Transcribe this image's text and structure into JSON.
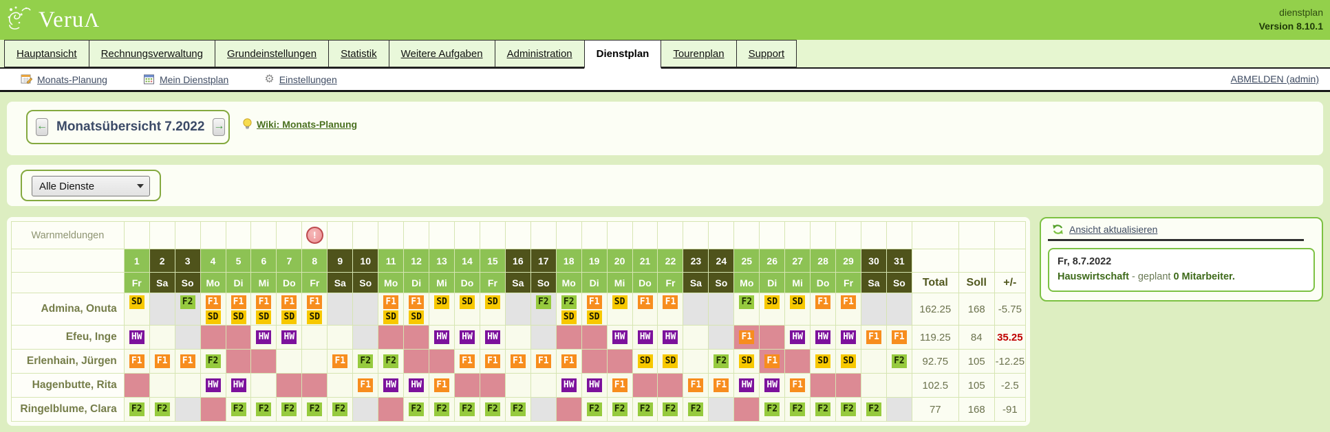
{
  "header": {
    "app_name_main": "Veru",
    "app_name_cap": "Λ",
    "subtitle": "dienstplan",
    "version": "Version 8.10.1"
  },
  "tabs": [
    {
      "label": "Hauptansicht",
      "active": false
    },
    {
      "label": "Rechnungsverwaltung",
      "active": false
    },
    {
      "label": "Grundeinstellungen",
      "active": false
    },
    {
      "label": "Statistik",
      "active": false
    },
    {
      "label": "Weitere Aufgaben",
      "active": false
    },
    {
      "label": "Administration",
      "active": false
    },
    {
      "label": "Dienstplan",
      "active": true
    },
    {
      "label": "Tourenplan",
      "active": false
    },
    {
      "label": "Support",
      "active": false
    }
  ],
  "toolbar": {
    "items": [
      {
        "label": "Monats-Planung",
        "icon": "calendar-edit-icon"
      },
      {
        "label": "Mein Dienstplan",
        "icon": "calendar-icon"
      },
      {
        "label": "Einstellungen",
        "icon": "gear-icon"
      }
    ],
    "logout_label": "ABMELDEN (admin)"
  },
  "month_nav": {
    "title": "Monatsübersicht 7.2022",
    "prev_arrow": "←",
    "next_arrow": "→",
    "wiki_label": "Wiki: Monats-Planung"
  },
  "filter": {
    "selected": "Alle Dienste"
  },
  "roster": {
    "warn_label": "Warnmeldungen",
    "warning_days": [
      8
    ],
    "summary_headers": [
      "Total",
      "Soll",
      "+/-"
    ],
    "days": [
      {
        "n": 1,
        "dow": "Fr"
      },
      {
        "n": 2,
        "dow": "Sa"
      },
      {
        "n": 3,
        "dow": "So"
      },
      {
        "n": 4,
        "dow": "Mo"
      },
      {
        "n": 5,
        "dow": "Di"
      },
      {
        "n": 6,
        "dow": "Mi"
      },
      {
        "n": 7,
        "dow": "Do"
      },
      {
        "n": 8,
        "dow": "Fr"
      },
      {
        "n": 9,
        "dow": "Sa"
      },
      {
        "n": 10,
        "dow": "So"
      },
      {
        "n": 11,
        "dow": "Mo"
      },
      {
        "n": 12,
        "dow": "Di"
      },
      {
        "n": 13,
        "dow": "Mi"
      },
      {
        "n": 14,
        "dow": "Do"
      },
      {
        "n": 15,
        "dow": "Fr"
      },
      {
        "n": 16,
        "dow": "Sa"
      },
      {
        "n": 17,
        "dow": "So"
      },
      {
        "n": 18,
        "dow": "Mo"
      },
      {
        "n": 19,
        "dow": "Di"
      },
      {
        "n": 20,
        "dow": "Mi"
      },
      {
        "n": 21,
        "dow": "Do"
      },
      {
        "n": 22,
        "dow": "Fr"
      },
      {
        "n": 23,
        "dow": "Sa"
      },
      {
        "n": 24,
        "dow": "So"
      },
      {
        "n": 25,
        "dow": "Mo"
      },
      {
        "n": 26,
        "dow": "Di"
      },
      {
        "n": 27,
        "dow": "Mi"
      },
      {
        "n": 28,
        "dow": "Do"
      },
      {
        "n": 29,
        "dow": "Fr"
      },
      {
        "n": 30,
        "dow": "Sa"
      },
      {
        "n": 31,
        "dow": "So"
      }
    ],
    "shift_colors": {
      "F1": {
        "bg": "#f78d1e",
        "fg": "#ffffff"
      },
      "F2": {
        "bg": "#96ca3e",
        "fg": "#1c2a00"
      },
      "SD": {
        "bg": "#f7c800",
        "fg": "#1a1a00"
      },
      "HW": {
        "bg": "#7c119c",
        "fg": "#ffffff"
      }
    },
    "cell_colors": {
      "plain": "#f9fbec",
      "weekend_grey": "#e3e3e3",
      "absence_pink": "#dc8a94",
      "header_weekday": "#8dc254",
      "header_weekend": "#4f531b"
    },
    "employees": [
      {
        "name": "Admina, Onuta",
        "tall": true,
        "cells": [
          "SD",
          "g",
          "g:F2",
          "F1+SD",
          "F1+SD",
          "F1+SD",
          "F1+SD",
          "F1+SD",
          "g",
          "g",
          "F1+SD",
          "F1+SD",
          "SD",
          "SD",
          "SD",
          "g",
          "g:F2",
          "F2+SD",
          "F1+SD",
          "SD",
          "F1",
          "F1",
          "g",
          "g",
          "F2",
          "SD",
          "SD",
          "F1",
          "F1",
          "g",
          "g"
        ],
        "total": "162.25",
        "soll": "168",
        "diff": "-5.75",
        "diff_red": false
      },
      {
        "name": "Efeu, Inge",
        "tall": false,
        "cells": [
          "HW",
          "",
          "g",
          "p",
          "p",
          "HW",
          "HW",
          "",
          "",
          "g",
          "p",
          "p",
          "HW",
          "HW",
          "HW",
          "",
          "g",
          "p",
          "p",
          "HW",
          "HW",
          "HW",
          "",
          "g",
          "p:F1",
          "p",
          "HW",
          "HW",
          "HW",
          "F1",
          "F1"
        ],
        "total": "119.25",
        "soll": "84",
        "diff": "35.25",
        "diff_red": true
      },
      {
        "name": "Erlenhain, Jürgen",
        "tall": false,
        "cells": [
          "F1",
          "F1",
          "F1",
          "F2",
          "p",
          "p",
          "",
          "",
          "F1",
          "F2",
          "F2",
          "p",
          "p",
          "F1",
          "F1",
          "F1",
          "F1",
          "F1",
          "p",
          "p",
          "SD",
          "SD",
          "",
          "F2",
          "SD",
          "p:F1",
          "p",
          "SD",
          "SD",
          "",
          "F2"
        ],
        "total": "92.75",
        "soll": "105",
        "diff": "-12.25",
        "diff_red": false
      },
      {
        "name": "Hagenbutte, Rita",
        "tall": false,
        "cells": [
          "p",
          "",
          "",
          "HW",
          "HW",
          "",
          "p",
          "p",
          "",
          "F1",
          "HW",
          "HW",
          "F1",
          "p",
          "p",
          "",
          "",
          "HW",
          "HW",
          "F1",
          "p",
          "p",
          "F1",
          "F1",
          "HW",
          "HW",
          "F1",
          "p",
          "p",
          "",
          ""
        ],
        "total": "102.5",
        "soll": "105",
        "diff": "-2.5",
        "diff_red": false
      },
      {
        "name": "Ringelblume, Clara",
        "tall": false,
        "cells": [
          "F2",
          "F2",
          "g",
          "p",
          "F2",
          "F2",
          "F2",
          "F2",
          "F2",
          "g",
          "p",
          "F2",
          "F2",
          "F2",
          "F2",
          "F2",
          "g",
          "p",
          "F2",
          "F2",
          "F2",
          "F2",
          "F2",
          "g",
          "p",
          "F2",
          "F2",
          "F2",
          "F2",
          "F2",
          "g"
        ],
        "total": "77",
        "soll": "168",
        "diff": "-91",
        "diff_red": false
      }
    ]
  },
  "right_panel": {
    "refresh_label": "Ansicht aktualisieren",
    "info_date": "Fr, 8.7.2022",
    "info_bold1": "Hauswirtschaft",
    "info_mid": " - geplant ",
    "info_bold2": "0 Mitarbeiter."
  }
}
